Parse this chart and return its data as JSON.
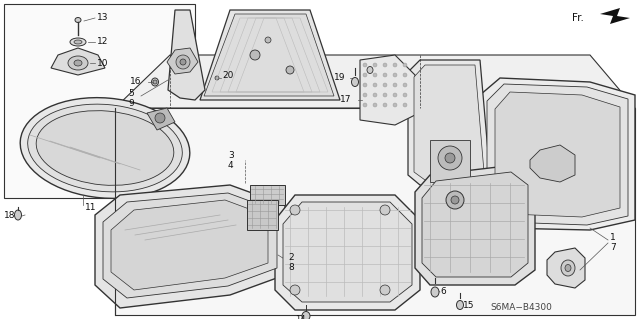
{
  "background_color": "#ffffff",
  "line_color": "#333333",
  "label_color": "#111111",
  "figsize": [
    6.4,
    3.19
  ],
  "dpi": 100,
  "diagram_ref": "S6MA−B4300"
}
